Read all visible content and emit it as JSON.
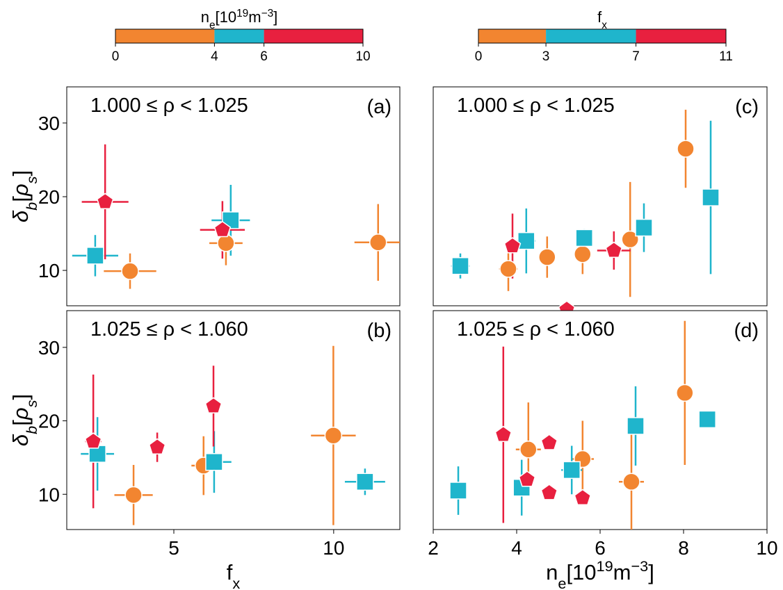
{
  "colorbars": [
    {
      "label": [
        {
          "text": "n"
        },
        {
          "text": "e",
          "shift": "sub"
        },
        {
          "text": "[10"
        },
        {
          "text": "19",
          "shift": "sup"
        },
        {
          "text": "m"
        },
        {
          "text": "−3",
          "shift": "sup"
        },
        {
          "text": "]"
        }
      ],
      "lim": [
        0,
        10
      ],
      "ticks": [
        0,
        4,
        6,
        10
      ],
      "colors": [
        "#f28530",
        "#1fb5cc",
        "#e8203f"
      ]
    },
    {
      "label": [
        {
          "text": "f"
        },
        {
          "text": "x",
          "shift": "sub"
        }
      ],
      "lim": [
        0,
        11
      ],
      "ticks": [
        0,
        3,
        7,
        11
      ],
      "colors": [
        "#f28530",
        "#1fb5cc",
        "#e8203f"
      ]
    }
  ],
  "chart_data": [
    {
      "type": "scatter",
      "annotation": "1.000 ≤ ρ < 1.025",
      "panel_label": "(a)",
      "xlim": [
        1.65,
        12.07
      ],
      "ylim": [
        5.2,
        34.9
      ],
      "yticks": [
        10,
        20,
        30
      ],
      "ylabel": [
        {
          "text": "δ",
          "style": "italic"
        },
        {
          "text": "b",
          "shift": "sub",
          "style": "italic"
        },
        {
          "text": "["
        },
        {
          "text": "ρ",
          "style": "italic"
        },
        {
          "text": "s",
          "shift": "sub",
          "style": "italic"
        },
        {
          "text": "]"
        }
      ],
      "series": [
        {
          "color": "#f28530",
          "marker": "circle",
          "x": [
            3.63,
            6.63,
            11.39
          ],
          "values": [
            9.9,
            13.7,
            13.8
          ],
          "xerr": [
            0.82,
            0.52,
            0.74
          ],
          "yerr": [
            2.4,
            3,
            5.2
          ]
        },
        {
          "color": "#1fb5cc",
          "marker": "square",
          "x": [
            2.54,
            6.78
          ],
          "values": [
            12.0,
            16.8
          ],
          "xerr": [
            0.72,
            0.6
          ],
          "yerr": [
            2.8,
            4.8
          ]
        },
        {
          "color": "#e8203f",
          "marker": "pentagon",
          "x": [
            2.85,
            6.52
          ],
          "values": [
            19.3,
            15.5
          ],
          "xerr": [
            0.73,
            0.7
          ],
          "yerr": [
            7.8,
            3.9
          ]
        }
      ]
    },
    {
      "type": "scatter",
      "annotation": "1.025 ≤ ρ < 1.060",
      "panel_label": "(b)",
      "xlim": [
        1.65,
        12.07
      ],
      "ylim": [
        5.2,
        35
      ],
      "xticks": [
        5,
        10
      ],
      "yticks": [
        10,
        20,
        30
      ],
      "xlabel": [
        {
          "text": "f"
        },
        {
          "text": "x",
          "shift": "sub"
        }
      ],
      "ylabel": [
        {
          "text": "δ",
          "style": "italic"
        },
        {
          "text": "b",
          "shift": "sub",
          "style": "italic"
        },
        {
          "text": "["
        },
        {
          "text": "ρ",
          "style": "italic"
        },
        {
          "text": "s",
          "shift": "sub",
          "style": "italic"
        },
        {
          "text": "]"
        }
      ],
      "series": [
        {
          "color": "#f28530",
          "marker": "circle",
          "x": [
            3.74,
            5.93,
            9.99
          ],
          "values": [
            9.9,
            13.9,
            18.0
          ],
          "xerr": [
            0.6,
            0.38,
            0.7
          ],
          "yerr": [
            4.1,
            4,
            12.2
          ]
        },
        {
          "color": "#1fb5cc",
          "marker": "square",
          "x": [
            2.61,
            6.26,
            10.98
          ],
          "values": [
            15.5,
            14.4,
            11.7
          ],
          "xerr": [
            0.52,
            0.54,
            0.63
          ],
          "yerr": [
            5,
            4.2,
            1.8
          ]
        },
        {
          "color": "#e8203f",
          "marker": "pentagon",
          "x": [
            2.48,
            4.48,
            6.24
          ],
          "values": [
            17.2,
            16.4,
            22.0
          ],
          "xerr": [
            0.25,
            0.2,
            0.15
          ],
          "yerr": [
            9.1,
            2,
            5.5
          ]
        }
      ]
    },
    {
      "type": "scatter",
      "annotation": "1.000 ≤ ρ < 1.025",
      "panel_label": "(c)",
      "xlim": [
        2,
        10
      ],
      "ylim": [
        5.2,
        34.9
      ],
      "series": [
        {
          "color": "#f28530",
          "marker": "circle",
          "x": [
            3.8,
            4.73,
            5.58,
            6.72,
            8.05
          ],
          "values": [
            10.2,
            11.8,
            12.2,
            14.2,
            26.5
          ],
          "xerr": [
            0.22,
            0.1,
            0.2,
            0.1,
            0.05
          ],
          "yerr": [
            3,
            2.8,
            2.7,
            7.8,
            5.3
          ]
        },
        {
          "color": "#1fb5cc",
          "marker": "square",
          "x": [
            2.65,
            4.23,
            5.62,
            7.05,
            8.65
          ],
          "values": [
            10.6,
            14.0,
            14.4,
            15.8,
            19.9
          ],
          "xerr": [
            0.22,
            0.22,
            0.1,
            0.1,
            0.05
          ],
          "yerr": [
            1.7,
            4.4,
            1.2,
            3.3,
            10.4
          ]
        },
        {
          "color": "#e8203f",
          "marker": "pentagon",
          "x": [
            3.9,
            6.33,
            5.2
          ],
          "values": [
            13.3,
            12.7,
            4.7
          ],
          "xerr": [
            0.05,
            0.4,
            0
          ],
          "yerr": [
            4.4,
            2.6,
            0
          ]
        }
      ]
    },
    {
      "type": "scatter",
      "annotation": "1.025 ≤ ρ < 1.060",
      "panel_label": "(d)",
      "xlim": [
        2,
        10
      ],
      "ylim": [
        5.2,
        35
      ],
      "xticks": [
        2,
        4,
        6,
        8,
        10
      ],
      "xlabel": [
        {
          "text": "n"
        },
        {
          "text": "e",
          "shift": "sub"
        },
        {
          "text": "[10"
        },
        {
          "text": "19",
          "shift": "sup"
        },
        {
          "text": "m"
        },
        {
          "text": "−3",
          "shift": "sup"
        },
        {
          "text": "]"
        }
      ],
      "series": [
        {
          "color": "#f28530",
          "marker": "circle",
          "x": [
            4.28,
            5.58,
            6.75,
            8.03
          ],
          "values": [
            16.1,
            14.8,
            11.7,
            23.8
          ],
          "xerr": [
            0.3,
            0.27,
            0.3,
            0.05
          ],
          "yerr": [
            6.4,
            5.2,
            6.5,
            9.8
          ]
        },
        {
          "color": "#1fb5cc",
          "marker": "square",
          "x": [
            2.6,
            4.12,
            5.32,
            6.85,
            8.57
          ],
          "values": [
            10.5,
            10.9,
            13.3,
            19.3,
            20.2
          ],
          "xerr": [
            0.2,
            0.12,
            0.25,
            0.05,
            0
          ],
          "yerr": [
            3.3,
            3.8,
            3.3,
            5.4,
            0
          ]
        },
        {
          "color": "#e8203f",
          "marker": "pentagon",
          "x": [
            3.68,
            4.25,
            4.78,
            4.78,
            5.58
          ],
          "values": [
            18.1,
            12.0,
            17.0,
            10.2,
            9.5
          ],
          "xerr": [
            0,
            0,
            0,
            0,
            0
          ],
          "yerr": [
            12,
            1,
            0,
            0,
            0
          ]
        }
      ]
    }
  ]
}
